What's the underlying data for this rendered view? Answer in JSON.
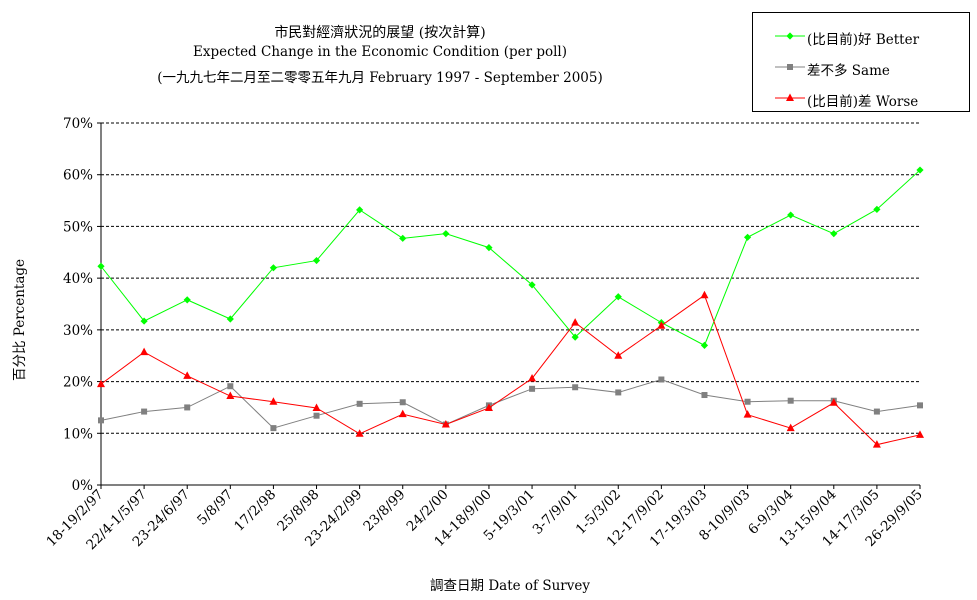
{
  "chart_data": {
    "type": "line",
    "title": "市民對經濟狀況的展望 (按次計算)",
    "subtitle": "Expected Change in the Economic Condition (per poll)",
    "subtitle2": "(一九九七年二月至二零零五年九月 February 1997 - September 2005)",
    "xlabel": "調查日期 Date of Survey",
    "ylabel": "百分比 Percentage",
    "ylim": [
      0,
      70
    ],
    "yticks": [
      "0%",
      "10%",
      "20%",
      "30%",
      "40%",
      "50%",
      "60%",
      "70%"
    ],
    "grid": "horizontal dotted",
    "legend_position": "top-right",
    "categories": [
      "18-19/2/97",
      "22/4-1/5/97",
      "23-24/6/97",
      "5/8/97",
      "17/2/98",
      "25/8/98",
      "23-24/2/99",
      "23/8/99",
      "24/2/00",
      "14-18/9/00",
      "5-19/3/01",
      "3-7/9/01",
      "1-5/3/02",
      "12-17/9/02",
      "17-19/3/03",
      "8-10/9/03",
      "6-9/3/04",
      "13-15/9/04",
      "14-17/3/05",
      "26-29/9/05"
    ],
    "series": [
      {
        "name": "(比目前)好 Better",
        "color": "#00ff00",
        "marker": "diamond",
        "values": [
          42.3,
          31.7,
          35.8,
          32.1,
          42.0,
          43.4,
          53.2,
          47.7,
          48.6,
          45.9,
          38.7,
          28.6,
          36.4,
          31.4,
          27.0,
          47.9,
          52.2,
          48.6,
          53.3,
          60.9
        ]
      },
      {
        "name": "差不多 Same",
        "color": "#808080",
        "marker": "square",
        "values": [
          12.5,
          14.2,
          15.0,
          19.1,
          11.0,
          13.4,
          15.7,
          16.0,
          11.7,
          15.4,
          18.6,
          18.9,
          17.9,
          20.4,
          17.4,
          16.1,
          16.3,
          16.3,
          14.2,
          15.4
        ]
      },
      {
        "name": "(比目前)差 Worse",
        "color": "#ff0000",
        "marker": "triangle",
        "values": [
          19.5,
          25.7,
          21.1,
          17.2,
          16.1,
          14.9,
          9.9,
          13.7,
          11.7,
          14.9,
          20.6,
          31.4,
          25.0,
          30.8,
          36.7,
          13.6,
          11.0,
          15.9,
          7.8,
          9.7
        ]
      }
    ]
  }
}
